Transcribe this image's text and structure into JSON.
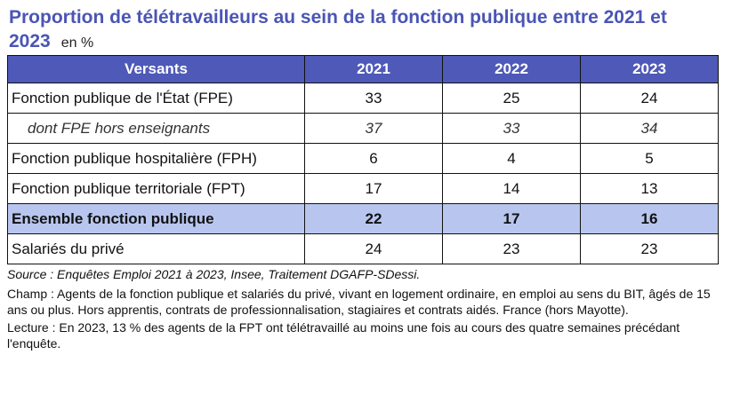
{
  "title": {
    "text": "Proportion de télétravailleurs au sein de la fonction publique entre 2021 et 2023",
    "unit": "en %"
  },
  "table": {
    "headers": [
      "Versants",
      "2021",
      "2022",
      "2023"
    ],
    "rows": [
      {
        "label": "Fonction publique de l'État (FPE)",
        "v2021": "33",
        "v2022": "25",
        "v2023": "24"
      },
      {
        "label": "dont FPE hors enseignants",
        "v2021": "37",
        "v2022": "33",
        "v2023": "34"
      },
      {
        "label": "Fonction publique hospitalière (FPH)",
        "v2021": "6",
        "v2022": "4",
        "v2023": "5"
      },
      {
        "label": "Fonction publique territoriale (FPT)",
        "v2021": "17",
        "v2022": "14",
        "v2023": "13"
      },
      {
        "label": "Ensemble fonction publique",
        "v2021": "22",
        "v2022": "17",
        "v2023": "16"
      },
      {
        "label": "Salariés du privé",
        "v2021": "24",
        "v2022": "23",
        "v2023": "23"
      }
    ]
  },
  "notes": {
    "source": "Source : Enquêtes Emploi 2021 à 2023, Insee, Traitement DGAFP-SDessi.",
    "champ": "Champ : Agents de la fonction publique et salariés du privé, vivant en logement ordinaire, en emploi au sens du BIT, âgés de 15 ans ou plus. Hors apprentis, contrats de professionnalisation, stagiaires et contrats aidés. France (hors Mayotte).",
    "lecture": "Lecture : En 2023, 13 % des agents de la FPT ont télétravaillé au moins une fois au cours des quatre semaines précédant l'enquête."
  }
}
